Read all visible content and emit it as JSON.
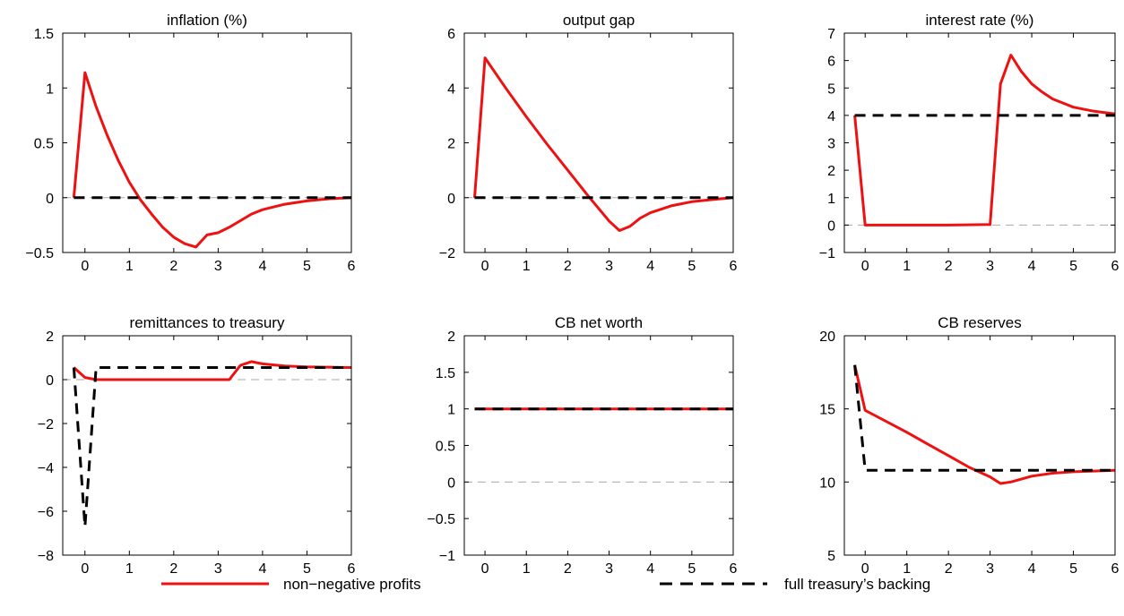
{
  "series_styles": {
    "nonneg": {
      "color": "#ee1111"
    },
    "full": {
      "color": "#000000"
    },
    "zero_line": {
      "color": "#aaaaaa"
    }
  },
  "legend": [
    {
      "label": "non−negative profits",
      "series": "nonneg"
    },
    {
      "label": "full treasury’s backing",
      "series": "full"
    }
  ],
  "chart_data": [
    {
      "type": "line",
      "title": "inflation (%)",
      "xlim": [
        -0.5,
        6
      ],
      "ylim": [
        -0.5,
        1.5
      ],
      "xticks": [
        0,
        1,
        2,
        3,
        4,
        5,
        6
      ],
      "yticks": [
        -0.5,
        0,
        0.5,
        1,
        1.5
      ],
      "ytick_labels": [
        "−0.5",
        "0",
        "0.5",
        "1",
        "1.5"
      ],
      "zero_line": true,
      "series": [
        {
          "key": "nonneg",
          "x": [
            -0.25,
            0,
            0.25,
            0.5,
            0.75,
            1,
            1.25,
            1.5,
            1.75,
            2,
            2.25,
            2.5,
            2.75,
            3,
            3.25,
            3.5,
            3.75,
            4,
            4.5,
            5,
            5.5,
            6
          ],
          "y": [
            0,
            1.14,
            0.83,
            0.57,
            0.34,
            0.14,
            -0.02,
            -0.15,
            -0.27,
            -0.36,
            -0.42,
            -0.45,
            -0.34,
            -0.32,
            -0.27,
            -0.21,
            -0.15,
            -0.11,
            -0.06,
            -0.03,
            -0.01,
            0
          ]
        },
        {
          "key": "full",
          "x": [
            -0.25,
            6
          ],
          "y": [
            0,
            0
          ]
        }
      ]
    },
    {
      "type": "line",
      "title": "output gap",
      "xlim": [
        -0.5,
        6
      ],
      "ylim": [
        -2,
        6
      ],
      "xticks": [
        0,
        1,
        2,
        3,
        4,
        5,
        6
      ],
      "yticks": [
        -2,
        0,
        2,
        4,
        6
      ],
      "ytick_labels": [
        "−2",
        "0",
        "2",
        "4",
        "6"
      ],
      "zero_line": true,
      "series": [
        {
          "key": "nonneg",
          "x": [
            -0.25,
            0,
            0.5,
            1,
            1.5,
            2,
            2.5,
            3,
            3.25,
            3.5,
            3.75,
            4,
            4.5,
            5,
            5.5,
            6
          ],
          "y": [
            0,
            5.1,
            4.0,
            2.95,
            1.95,
            1.0,
            0.05,
            -0.85,
            -1.2,
            -1.05,
            -0.75,
            -0.55,
            -0.3,
            -0.15,
            -0.07,
            0
          ]
        },
        {
          "key": "full",
          "x": [
            -0.25,
            6
          ],
          "y": [
            0,
            0
          ]
        }
      ]
    },
    {
      "type": "line",
      "title": "interest rate (%)",
      "xlim": [
        -0.5,
        6
      ],
      "ylim": [
        -1,
        7
      ],
      "xticks": [
        0,
        1,
        2,
        3,
        4,
        5,
        6
      ],
      "yticks": [
        -1,
        0,
        1,
        2,
        3,
        4,
        5,
        6,
        7
      ],
      "ytick_labels": [
        "−1",
        "0",
        "1",
        "2",
        "3",
        "4",
        "5",
        "6",
        "7"
      ],
      "zero_line": true,
      "series": [
        {
          "key": "nonneg",
          "x": [
            -0.25,
            0,
            0.5,
            1,
            2,
            3,
            3.25,
            3.5,
            3.75,
            4,
            4.25,
            4.5,
            5,
            5.5,
            6
          ],
          "y": [
            4,
            0,
            0,
            0,
            0,
            0.02,
            5.15,
            6.2,
            5.6,
            5.15,
            4.85,
            4.6,
            4.3,
            4.15,
            4.05
          ]
        },
        {
          "key": "full",
          "x": [
            -0.25,
            6
          ],
          "y": [
            4,
            4
          ]
        }
      ]
    },
    {
      "type": "line",
      "title": "remittances to treasury",
      "xlim": [
        -0.5,
        6
      ],
      "ylim": [
        -8,
        2
      ],
      "xticks": [
        0,
        1,
        2,
        3,
        4,
        5,
        6
      ],
      "yticks": [
        -8,
        -6,
        -4,
        -2,
        0,
        2
      ],
      "ytick_labels": [
        "−8",
        "−6",
        "−4",
        "−2",
        "0",
        "2"
      ],
      "zero_line": true,
      "series": [
        {
          "key": "nonneg",
          "x": [
            -0.25,
            0,
            0.25,
            1,
            2,
            3,
            3.25,
            3.5,
            3.75,
            4,
            4.5,
            5,
            6
          ],
          "y": [
            0.55,
            0.1,
            0,
            0,
            0,
            0,
            0,
            0.65,
            0.82,
            0.72,
            0.62,
            0.58,
            0.55
          ]
        },
        {
          "key": "full",
          "x": [
            -0.25,
            0,
            0.25,
            6
          ],
          "y": [
            0.55,
            -6.7,
            0.55,
            0.55
          ]
        }
      ]
    },
    {
      "type": "line",
      "title": "CB net worth",
      "xlim": [
        -0.5,
        6
      ],
      "ylim": [
        -1,
        2
      ],
      "xticks": [
        0,
        1,
        2,
        3,
        4,
        5,
        6
      ],
      "yticks": [
        -1,
        -0.5,
        0,
        0.5,
        1,
        1.5,
        2
      ],
      "ytick_labels": [
        "−1",
        "−0.5",
        "0",
        "0.5",
        "1",
        "1.5",
        "2"
      ],
      "zero_line": true,
      "series": [
        {
          "key": "nonneg",
          "x": [
            -0.25,
            6
          ],
          "y": [
            1,
            1
          ]
        },
        {
          "key": "full",
          "x": [
            -0.25,
            6
          ],
          "y": [
            1,
            1
          ]
        }
      ]
    },
    {
      "type": "line",
      "title": "CB reserves",
      "xlim": [
        -0.5,
        6
      ],
      "ylim": [
        5,
        20
      ],
      "xticks": [
        0,
        1,
        2,
        3,
        4,
        5,
        6
      ],
      "yticks": [
        5,
        10,
        15,
        20
      ],
      "ytick_labels": [
        "5",
        "10",
        "15",
        "20"
      ],
      "zero_line": false,
      "series": [
        {
          "key": "nonneg",
          "x": [
            -0.25,
            0,
            0.5,
            1,
            1.5,
            2,
            2.5,
            3,
            3.25,
            3.5,
            3.75,
            4,
            4.5,
            5,
            5.5,
            6
          ],
          "y": [
            18,
            14.9,
            14.15,
            13.4,
            12.6,
            11.8,
            11.0,
            10.35,
            9.9,
            10.0,
            10.2,
            10.4,
            10.6,
            10.7,
            10.75,
            10.8
          ]
        },
        {
          "key": "full",
          "x": [
            -0.25,
            0,
            0.5,
            6
          ],
          "y": [
            18,
            10.8,
            10.8,
            10.8
          ]
        }
      ]
    }
  ]
}
